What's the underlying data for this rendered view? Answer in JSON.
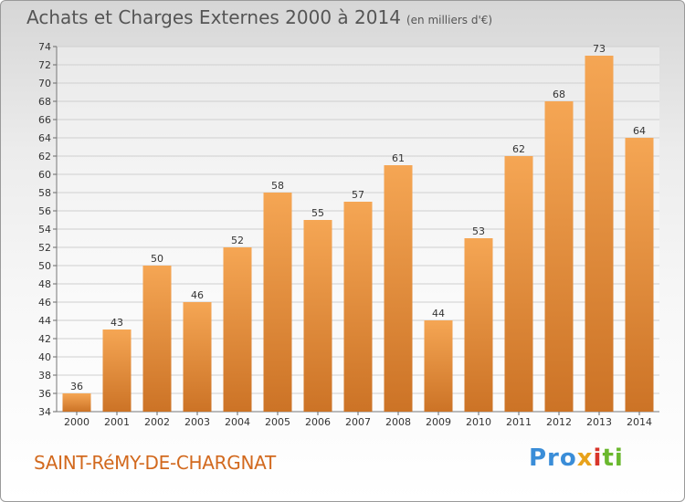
{
  "title": "Achats et Charges Externes 2000 à 2014",
  "subtitle": "(en milliers d'€)",
  "commune": "SAINT-RéMY-DE-CHARGNAT",
  "logo": {
    "part1": "Pro",
    "part2": "x",
    "part3": "i",
    "part4": "ti"
  },
  "colors": {
    "bar_light": "#f5a654",
    "bar_dark": "#cc7326",
    "text": "#555555",
    "commune": "#d2691e"
  },
  "chart_data": {
    "type": "bar",
    "categories": [
      "2000",
      "2001",
      "2002",
      "2003",
      "2004",
      "2005",
      "2006",
      "2007",
      "2008",
      "2009",
      "2010",
      "2011",
      "2012",
      "2013",
      "2014"
    ],
    "values": [
      36,
      43,
      50,
      46,
      52,
      58,
      55,
      57,
      61,
      44,
      53,
      62,
      68,
      73,
      64
    ],
    "title": "Achats et Charges Externes 2000 à 2014",
    "subtitle": "(en milliers d'€)",
    "xlabel": "",
    "ylabel": "",
    "ylim": [
      34,
      74
    ],
    "ytick_step": 2,
    "grid": true,
    "data_labels": true
  }
}
